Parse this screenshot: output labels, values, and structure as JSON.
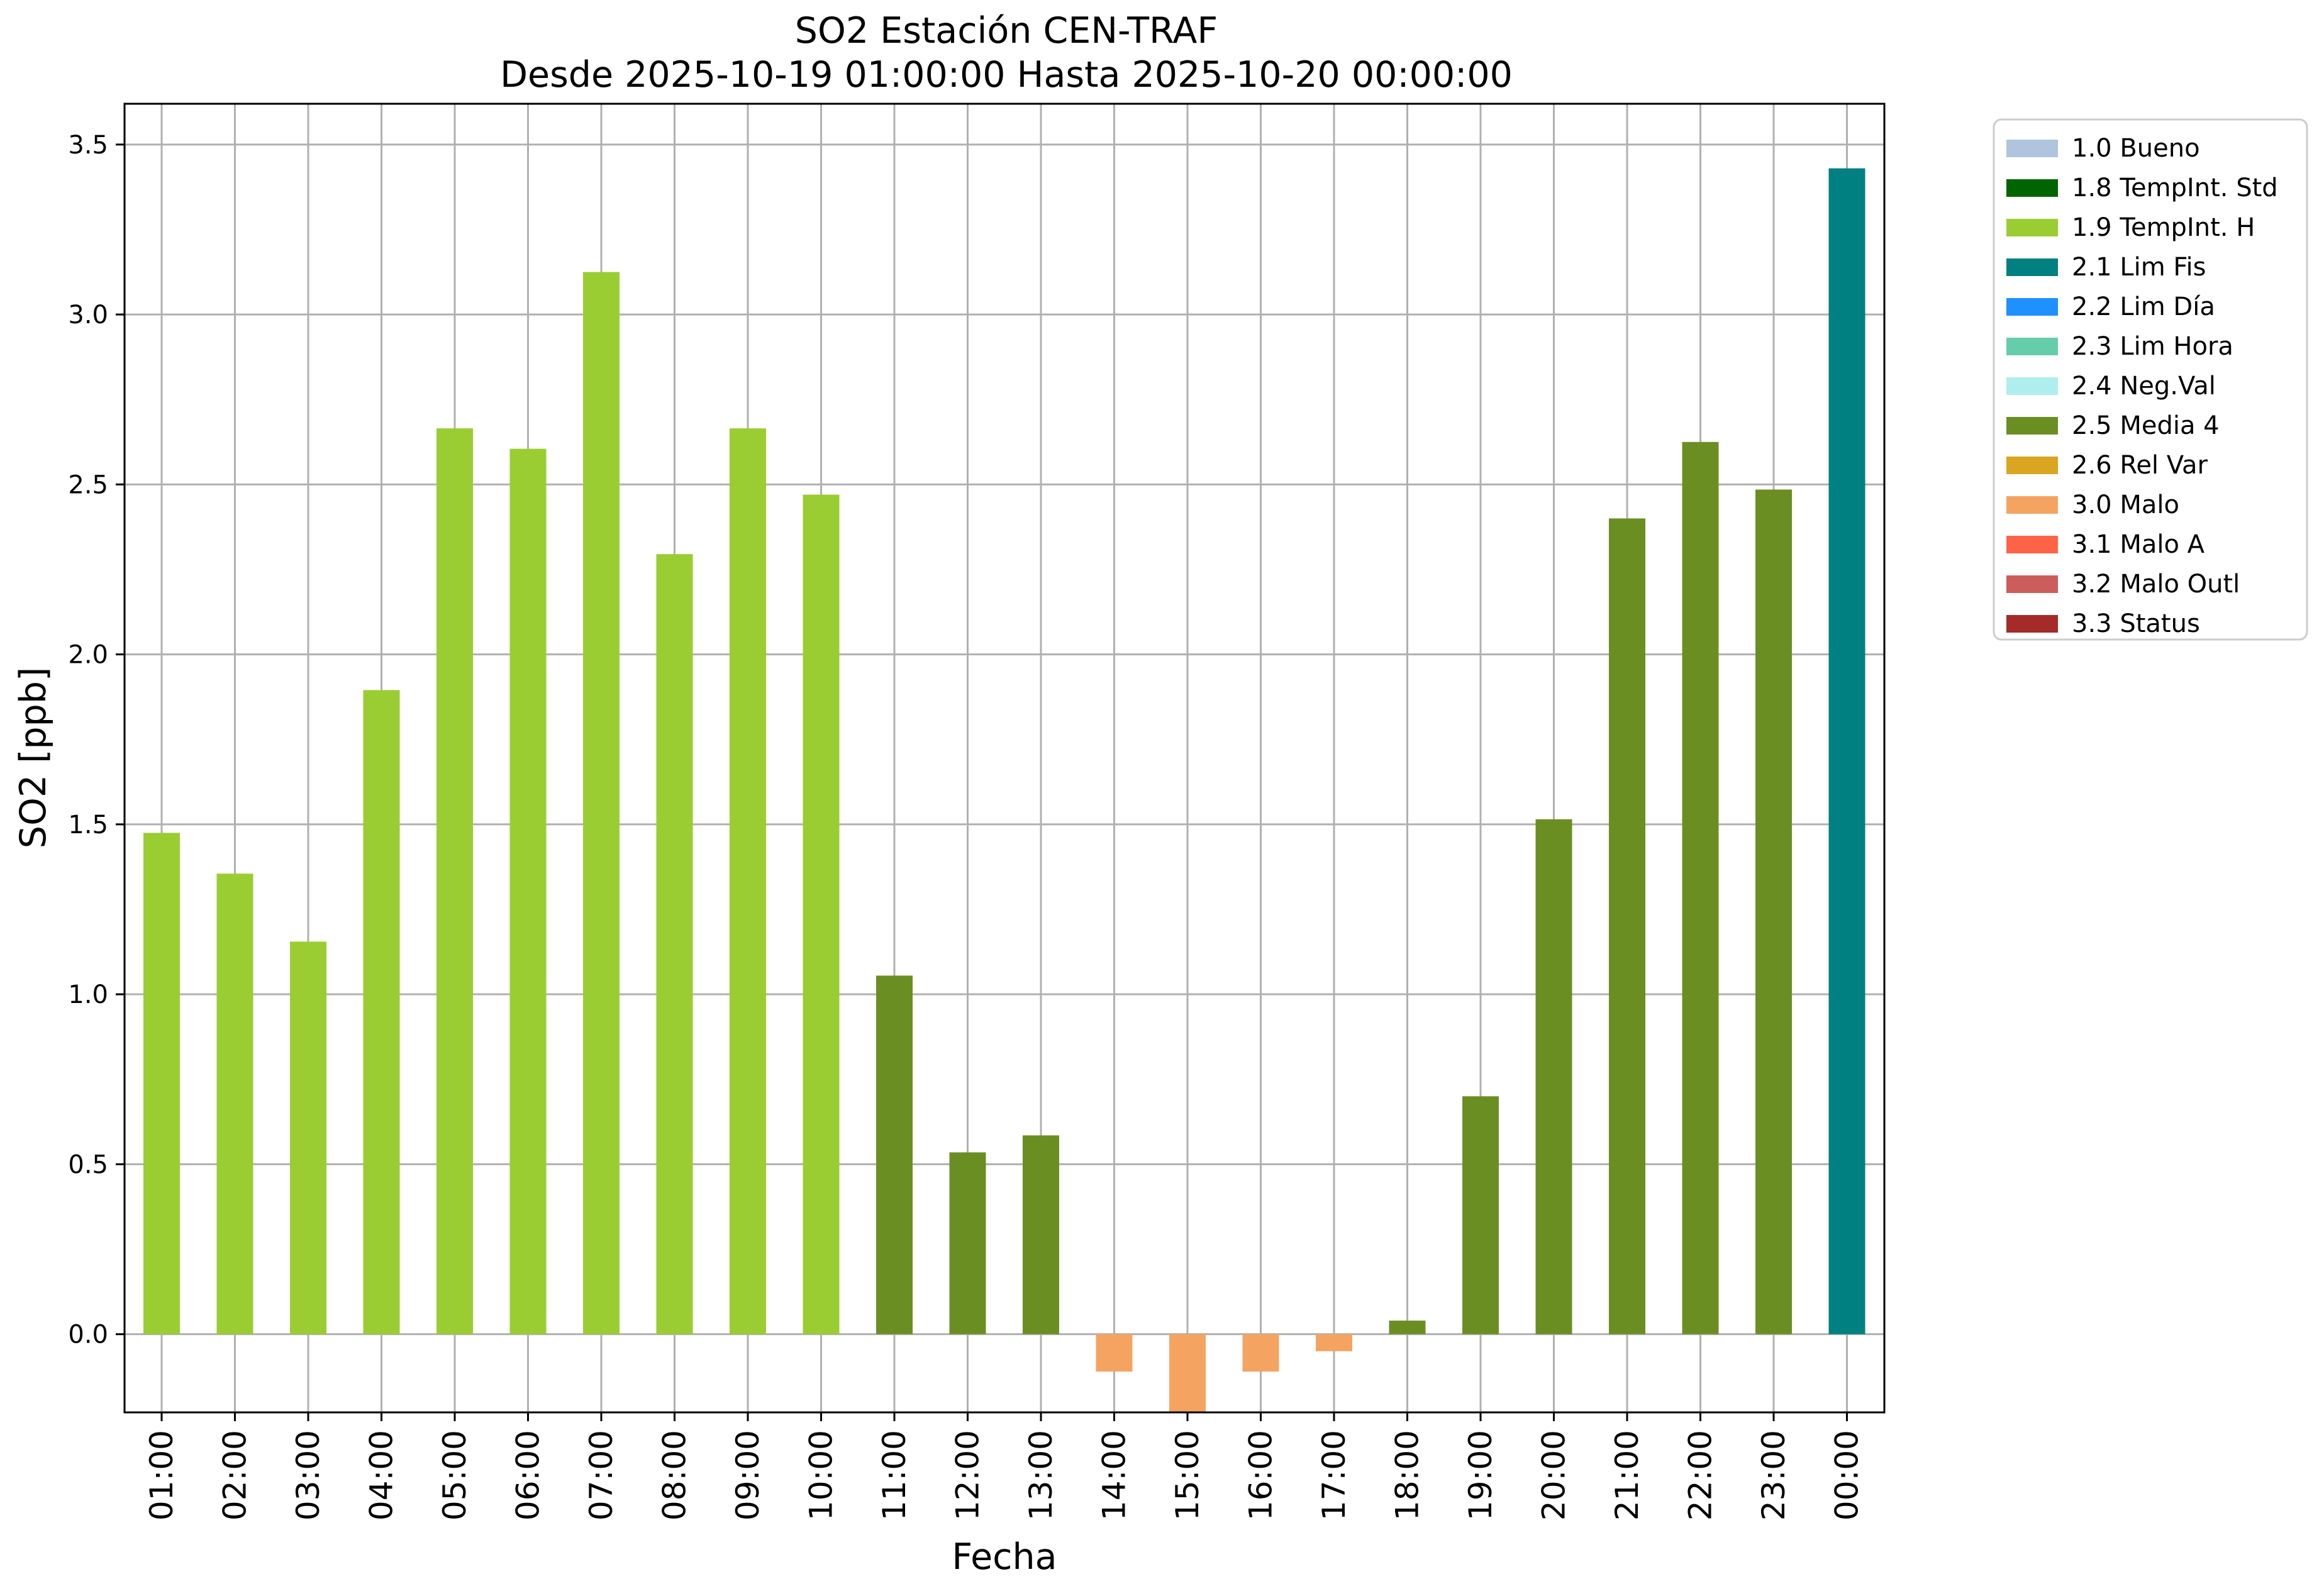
{
  "chart_data": {
    "type": "bar",
    "title": "SO2 Estación CEN-TRAF",
    "subtitle": "Desde 2025-10-19 01:00:00 Hasta 2025-10-20 00:00:00",
    "xlabel": "Fecha",
    "ylabel": "SO2 [ppb]",
    "ylim": [
      -0.23,
      3.62
    ],
    "yticks": [
      "0.0",
      "0.5",
      "1.0",
      "1.5",
      "2.0",
      "2.5",
      "3.0",
      "3.5"
    ],
    "grid": true,
    "legend_position": "outside-top-right",
    "categories": [
      "01:00",
      "02:00",
      "03:00",
      "04:00",
      "05:00",
      "06:00",
      "07:00",
      "08:00",
      "09:00",
      "10:00",
      "11:00",
      "12:00",
      "13:00",
      "14:00",
      "15:00",
      "16:00",
      "17:00",
      "18:00",
      "19:00",
      "20:00",
      "21:00",
      "22:00",
      "23:00",
      "00:00"
    ],
    "values": [
      1.475,
      1.355,
      1.155,
      1.895,
      2.665,
      2.605,
      3.125,
      2.295,
      2.665,
      2.47,
      1.055,
      0.535,
      0.585,
      -0.11,
      -0.235,
      -0.11,
      -0.05,
      0.04,
      0.7,
      1.515,
      2.4,
      2.625,
      2.485,
      3.43
    ],
    "flags": [
      "1.9 TempInt. H",
      "1.9 TempInt. H",
      "1.9 TempInt. H",
      "1.9 TempInt. H",
      "1.9 TempInt. H",
      "1.9 TempInt. H",
      "1.9 TempInt. H",
      "1.9 TempInt. H",
      "1.9 TempInt. H",
      "1.9 TempInt. H",
      "2.5 Media 4",
      "2.5 Media 4",
      "2.5 Media 4",
      "3.0 Malo",
      "3.0 Malo",
      "3.0 Malo",
      "3.0 Malo",
      "2.5 Media 4",
      "2.5 Media 4",
      "2.5 Media 4",
      "2.5 Media 4",
      "2.5 Media 4",
      "2.5 Media 4",
      "2.1 Lim Fis"
    ],
    "legend": [
      {
        "label": "1.0 Bueno",
        "color": "#b0c4de"
      },
      {
        "label": "1.8 TempInt. Std",
        "color": "#006400"
      },
      {
        "label": "1.9 TempInt. H",
        "color": "#9acd32"
      },
      {
        "label": "2.1 Lim Fis",
        "color": "#008080"
      },
      {
        "label": "2.2 Lim Día",
        "color": "#1e90ff"
      },
      {
        "label": "2.3 Lim Hora",
        "color": "#66cdaa"
      },
      {
        "label": "2.4 Neg.Val",
        "color": "#afeeee"
      },
      {
        "label": "2.5 Media 4",
        "color": "#6b8e23"
      },
      {
        "label": "2.6 Rel Var",
        "color": "#daa520"
      },
      {
        "label": "3.0 Malo",
        "color": "#f4a460"
      },
      {
        "label": "3.1 Malo A",
        "color": "#ff6347"
      },
      {
        "label": "3.2 Malo Outl",
        "color": "#cd5c5c"
      },
      {
        "label": "3.3 Status",
        "color": "#a52a2a"
      }
    ]
  }
}
